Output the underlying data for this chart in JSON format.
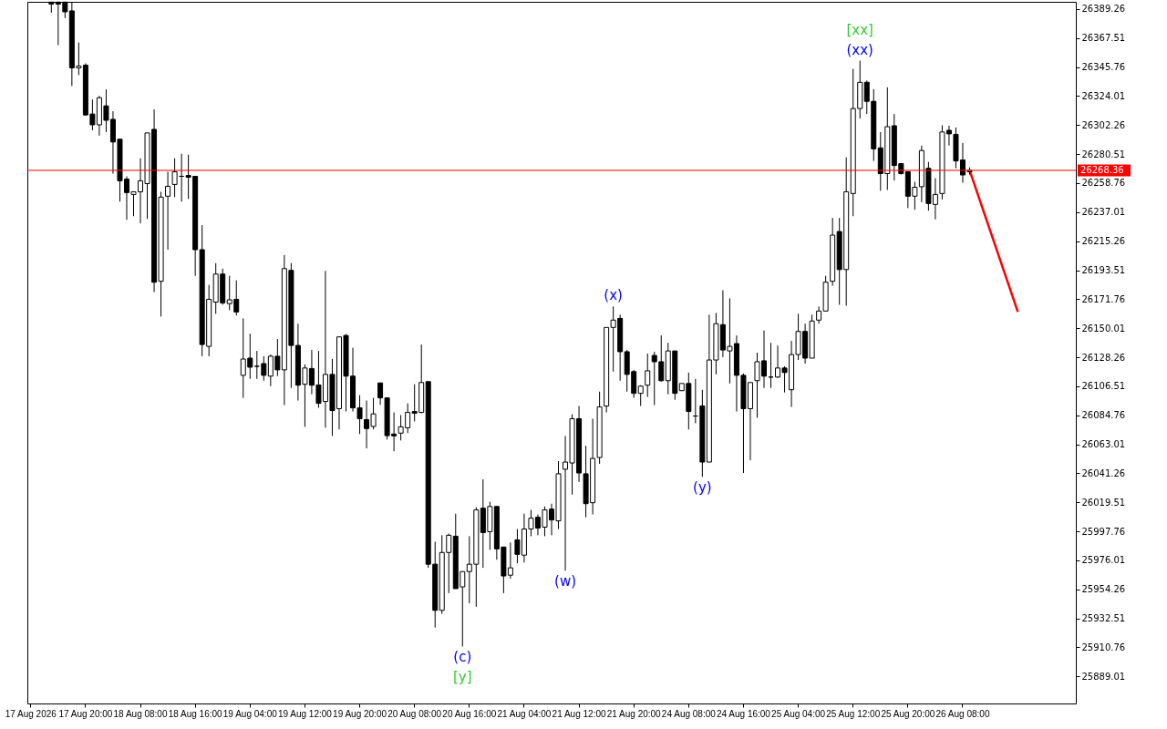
{
  "chart_data": {
    "type": "candlestick",
    "categories": [
      "17 Aug 2026",
      null,
      null,
      null,
      null,
      null,
      null,
      null,
      "17 Aug 20:00",
      null,
      null,
      null,
      null,
      null,
      null,
      null,
      "18 Aug 08:00",
      null,
      null,
      null,
      null,
      null,
      null,
      null,
      "18 Aug 16:00",
      null,
      null,
      null,
      null,
      null,
      null,
      null,
      "19 Aug 04:00",
      null,
      null,
      null,
      null,
      null,
      null,
      null,
      "19 Aug 12:00",
      null,
      null,
      null,
      null,
      null,
      null,
      null,
      "19 Aug 20:00",
      null,
      null,
      null,
      null,
      null,
      null,
      null,
      "20 Aug 08:00",
      null,
      null,
      null,
      null,
      null,
      null,
      null,
      "20 Aug 16:00",
      null,
      null,
      null,
      null,
      null,
      null,
      null,
      "21 Aug 04:00",
      null,
      null,
      null,
      null,
      null,
      null,
      null,
      "21 Aug 12:00",
      null,
      null,
      null,
      null,
      null,
      null,
      null,
      "21 Aug 20:00",
      null,
      null,
      null,
      null,
      null,
      null,
      null,
      "24 Aug 08:00",
      null,
      null,
      null,
      null,
      null,
      null,
      null,
      "24 Aug 16:00",
      null,
      null,
      null,
      null,
      null,
      null,
      null,
      "25 Aug 04:00",
      null,
      null,
      null,
      null,
      null,
      null,
      null,
      "25 Aug 12:00",
      null,
      null,
      null,
      null,
      null,
      null,
      null,
      "25 Aug 20:00",
      null,
      null,
      null,
      null,
      null,
      null,
      null,
      "26 Aug 08:00",
      null,
      null,
      null,
      null,
      null,
      null,
      null,
      null,
      null,
      null,
      null,
      null,
      null,
      null,
      null,
      null
    ],
    "ohlc": [
      null,
      null,
      null,
      [
        26394.5,
        26394.5,
        26386.5,
        26393
      ],
      [
        26394.5,
        26394.5,
        26362.2,
        26393
      ],
      [
        26394.5,
        26394.5,
        26382.5,
        26387.2
      ],
      [
        26387.9,
        26394.5,
        26331.6,
        26345.2
      ],
      [
        26345.2,
        26364.2,
        26339.8,
        26346.6
      ],
      [
        26347.2,
        26348.6,
        26309.3,
        26309.9
      ],
      [
        26310.6,
        26321.5,
        26298.4,
        26302.5
      ],
      [
        26302.5,
        26324.2,
        26294.4,
        26322.8
      ],
      [
        26316.7,
        26329.0,
        26297.1,
        26305.9
      ],
      [
        26306.6,
        26312.7,
        26265.9,
        26289.6
      ],
      [
        26291.7,
        26291.7,
        26244.9,
        26260.5
      ],
      [
        26261.8,
        26263.9,
        26231.3,
        26251.7
      ],
      [
        26250.3,
        26252.3,
        26234.0,
        26252.3
      ],
      [
        26252.3,
        26277.4,
        26228.6,
        26260.5
      ],
      [
        26258.4,
        26296.4,
        26232.0,
        26296.4
      ],
      [
        26299.1,
        26314.0,
        26177.1,
        26184.5
      ],
      [
        26185.2,
        26252.3,
        26158.8,
        26248.3
      ],
      [
        26249.0,
        26267.3,
        26208.9,
        26256.4
      ],
      [
        26257.8,
        26277.4,
        26248.3,
        26267.3
      ],
      [
        26263.9,
        26280.8,
        26244.9,
        26263.9
      ],
      [
        26264.5,
        26280.1,
        26246.9,
        26263.2
      ],
      [
        26263.9,
        26263.9,
        26189.3,
        26208.9
      ],
      [
        26208.9,
        26227.3,
        26129.0,
        26137.8
      ],
      [
        26136.4,
        26182.5,
        26129.0,
        26171.7
      ],
      [
        26169.6,
        26198.8,
        26160.8,
        26190.6
      ],
      [
        26190.6,
        26194.7,
        26167.6,
        26169.0
      ],
      [
        26168.5,
        26189.3,
        26163.5,
        26171.3
      ],
      [
        26171.7,
        26185.9,
        26159.5,
        26162.2
      ],
      [
        26114.7,
        26157.4,
        26097.8,
        26126.9
      ],
      [
        26127.6,
        26145.9,
        26112.0,
        26120.8
      ],
      [
        26121.5,
        26133.0,
        26112.0,
        26121.5
      ],
      [
        26123.5,
        26129.0,
        26110.7,
        26114.7
      ],
      [
        26114.1,
        26130.3,
        26106.6,
        26129.0
      ],
      [
        26129.0,
        26141.9,
        26114.1,
        26118.8
      ],
      [
        26118.8,
        26204.9,
        26092.4,
        26194.7
      ],
      [
        26193.4,
        26198.8,
        26105.3,
        26137.1
      ],
      [
        26137.1,
        26153.4,
        26095.8,
        26107.3
      ],
      [
        26108.0,
        26122.9,
        26076.1,
        26120.2
      ],
      [
        26119.8,
        26133.7,
        26100.5,
        26107.3
      ],
      [
        26107.5,
        26133.0,
        26090.3,
        26093.7
      ],
      [
        26095.1,
        26193.0,
        26075.4,
        26115.4
      ],
      [
        26115.4,
        26127.0,
        26069.3,
        26088.3
      ],
      [
        26089.7,
        26143.9,
        26074.1,
        26143.5
      ],
      [
        26144.6,
        26145.6,
        26087.6,
        26114.1
      ],
      [
        26114.1,
        26135.4,
        26087.6,
        26090.3
      ],
      [
        26090.3,
        26099.8,
        26070.7,
        26082.2
      ],
      [
        26081.5,
        26095.8,
        26059.9,
        26074.8
      ],
      [
        26076.4,
        26097.8,
        26074.1,
        26085.8
      ],
      [
        26109.0,
        26109.0,
        26092.6,
        26097.8
      ],
      [
        26097.8,
        26097.8,
        26066.6,
        26069.5
      ],
      [
        26070.7,
        26086.9,
        26057.8,
        26069.3
      ],
      [
        26071.4,
        26084.9,
        26065.9,
        26076.1
      ],
      [
        26075.4,
        26093.7,
        26071.4,
        26086.9
      ],
      [
        26087.6,
        26108.0,
        26080.2,
        26086.3
      ],
      [
        26086.9,
        26137.8,
        26086.3,
        26109.3
      ],
      [
        26110.0,
        26110.0,
        25970.4,
        25973.1
      ],
      [
        25973.1,
        25990.0,
        25925.6,
        25938.5
      ],
      [
        25938.5,
        25994.8,
        25935.8,
        25981.9
      ],
      [
        25981.9,
        25996.1,
        25951.4,
        25994.8
      ],
      [
        25994.1,
        26011.0,
        25954.8,
        25954.8
      ],
      [
        25956.1,
        25967.6,
        25911.4,
        25967.6
      ],
      [
        25967.6,
        25994.1,
        25943.9,
        25973.1
      ],
      [
        25973.1,
        26015.8,
        25941.2,
        26013.8
      ],
      [
        26015.1,
        26036.8,
        25970.4,
        25996.8
      ],
      [
        25997.5,
        26019.9,
        25983.9,
        26016.4
      ],
      [
        26016.4,
        26016.4,
        25976.5,
        25984.6
      ],
      [
        25986.0,
        25986.0,
        25951.4,
        25964.3
      ],
      [
        25964.9,
        25989.4,
        25962.3,
        25970.4
      ],
      [
        25991.4,
        25999.5,
        25973.8,
        25980.5
      ],
      [
        25979.9,
        26011.0,
        25974.4,
        25999.5
      ],
      [
        25999.5,
        26013.8,
        25994.1,
        26007.6
      ],
      [
        26008.3,
        26010.4,
        25994.8,
        26000.2
      ],
      [
        26000.9,
        26016.4,
        25994.1,
        26013.8
      ],
      [
        26014.4,
        26018.5,
        25994.8,
        26006.3
      ],
      [
        26005.6,
        26050.4,
        25999.5,
        26040.9
      ],
      [
        26044.3,
        26069.3,
        25968.3,
        26049.7
      ],
      [
        26049.0,
        26085.6,
        26025.3,
        26082.2
      ],
      [
        26082.2,
        26091.7,
        26034.8,
        26041.5
      ],
      [
        26040.9,
        26061.9,
        26008.3,
        26018.5
      ],
      [
        26019.2,
        26082.2,
        26010.4,
        26052.4
      ],
      [
        26053.1,
        26102.5,
        26048.3,
        26091.0
      ],
      [
        26091.7,
        26150.6,
        26086.9,
        26150.6
      ],
      [
        26150.6,
        26166.3,
        26117.5,
        26156.1
      ],
      [
        26157.4,
        26160.2,
        26110.7,
        26132.4
      ],
      [
        26132.4,
        26133.7,
        26102.5,
        26115.4
      ],
      [
        26117.5,
        26118.8,
        26097.8,
        26101.2
      ],
      [
        26101.2,
        26107.3,
        26091.7,
        26106.6
      ],
      [
        26107.3,
        26131.0,
        26098.5,
        26118.1
      ],
      [
        26129.6,
        26132.4,
        26092.4,
        26124.9
      ],
      [
        26124.9,
        26144.6,
        26110.0,
        26110.7
      ],
      [
        26110.7,
        26139.1,
        26100.5,
        26133.0
      ],
      [
        26133.0,
        26133.0,
        26096.4,
        26101.2
      ],
      [
        26103.2,
        26108.6,
        26103.2,
        26108.6
      ],
      [
        26108.6,
        26116.8,
        26074.1,
        26087.6
      ],
      [
        26084.2,
        26112.0,
        26078.8,
        26084.2
      ],
      [
        26091.7,
        26103.9,
        26038.6,
        26049.7
      ],
      [
        26049.7,
        26160.2,
        26049.7,
        26126.2
      ],
      [
        26126.2,
        26161.5,
        26115.4,
        26153.4
      ],
      [
        26152.7,
        26178.5,
        26128.3,
        26133.7
      ],
      [
        26133.0,
        26172.4,
        26108.6,
        26136.4
      ],
      [
        26138.5,
        26144.6,
        26087.6,
        26114.7
      ],
      [
        26114.7,
        26116.1,
        26041.5,
        26089.7
      ],
      [
        26089.7,
        26109.3,
        26051.0,
        26109.3
      ],
      [
        26110.7,
        26131.7,
        26082.9,
        26124.9
      ],
      [
        26125.6,
        26148.3,
        26105.3,
        26114.1
      ],
      [
        26113.4,
        26139.1,
        26105.3,
        26113.4
      ],
      [
        26113.4,
        26137.1,
        26112.7,
        26120.2
      ],
      [
        26120.2,
        26121.5,
        26101.9,
        26116.8
      ],
      [
        26103.9,
        26140.5,
        26091.0,
        26130.3
      ],
      [
        26130.3,
        26160.8,
        26126.2,
        26147.6
      ],
      [
        26147.6,
        26153.4,
        26123.5,
        26127.6
      ],
      [
        26127.6,
        26160.2,
        26127.6,
        26155.4
      ],
      [
        26156.1,
        26166.3,
        26153.4,
        26162.9
      ],
      [
        26162.9,
        26189.3,
        26162.9,
        26184.5
      ],
      [
        26185.2,
        26232.7,
        26181.8,
        26219.8
      ],
      [
        26222.5,
        26232.7,
        26167.6,
        26194.0
      ],
      [
        26194.0,
        26278.1,
        26166.9,
        26252.3
      ],
      [
        26251.0,
        26344.5,
        26234.0,
        26314.7
      ],
      [
        26314.7,
        26350.6,
        26307.2,
        26334.4
      ],
      [
        26334.4,
        26335.7,
        26310.6,
        26320.1
      ],
      [
        26320.1,
        26329.3,
        26275.4,
        26284.5
      ],
      [
        26285.2,
        26297.0,
        26253.0,
        26265.9
      ],
      [
        26265.9,
        26330.6,
        26253.7,
        26301.1
      ],
      [
        26301.8,
        26310.6,
        26260.8,
        26272.0
      ],
      [
        26273.4,
        26273.4,
        26265.2,
        26265.9
      ],
      [
        26267.3,
        26267.3,
        26240.1,
        26249.0
      ],
      [
        26249.0,
        26259.8,
        26238.8,
        26255.7
      ],
      [
        26256.1,
        26286.9,
        26244.5,
        26283.2
      ],
      [
        26269.9,
        26274.7,
        26238.1,
        26243.5
      ],
      [
        26242.8,
        26262.5,
        26231.6,
        26250.3
      ],
      [
        26251.0,
        26302.2,
        26246.6,
        26297.1
      ],
      [
        26298.4,
        26301.8,
        26287.0,
        26295.7
      ],
      [
        26295.4,
        26300.5,
        26269.9,
        26275.4
      ],
      [
        26276.1,
        26288.9,
        26259.1,
        26264.9
      ],
      [
        26267.3,
        26270.6,
        26265.2,
        26268.36
      ],
      null,
      null,
      null,
      null,
      null,
      null,
      null,
      null,
      null,
      null,
      null,
      null,
      null,
      null,
      null
    ],
    "series": [
      {
        "type": "line",
        "color": "#ff0000",
        "values": [
          null,
          null,
          null,
          null,
          null,
          null,
          null,
          null,
          null,
          null,
          null,
          null,
          null,
          null,
          null,
          null,
          null,
          null,
          null,
          null,
          null,
          null,
          null,
          null,
          null,
          null,
          null,
          null,
          null,
          null,
          null,
          null,
          null,
          null,
          null,
          null,
          null,
          null,
          null,
          null,
          null,
          null,
          null,
          null,
          null,
          null,
          null,
          null,
          null,
          null,
          null,
          null,
          null,
          null,
          null,
          null,
          null,
          null,
          null,
          null,
          null,
          null,
          null,
          null,
          null,
          null,
          null,
          null,
          null,
          null,
          null,
          null,
          null,
          null,
          null,
          null,
          null,
          null,
          null,
          null,
          null,
          null,
          null,
          null,
          null,
          null,
          null,
          null,
          null,
          null,
          null,
          null,
          null,
          null,
          null,
          null,
          null,
          null,
          null,
          null,
          null,
          null,
          null,
          null,
          null,
          null,
          null,
          null,
          null,
          null,
          null,
          null,
          null,
          null,
          null,
          null,
          null,
          null,
          null,
          null,
          null,
          null,
          null,
          null,
          null,
          null,
          null,
          null,
          null,
          null,
          null,
          null,
          null,
          null,
          null,
          null,
          null,
          26268.36,
          null,
          null,
          null,
          null,
          null,
          null,
          26162.9,
          null,
          null,
          null,
          null,
          null,
          null,
          null,
          null
        ]
      }
    ],
    "ylim": [
      25868.7,
      26394.7
    ],
    "yticks": [
      26389.26,
      26367.51,
      26345.76,
      26324.01,
      26302.26,
      26280.51,
      26258.76,
      26237.01,
      26215.26,
      26193.51,
      26171.76,
      26150.01,
      26128.26,
      26106.51,
      26084.76,
      26063.01,
      26041.26,
      26019.51,
      25997.76,
      25976.01,
      25954.26,
      25932.51,
      25910.76,
      25889.01
    ],
    "ref_lines": [
      {
        "axis": "y",
        "value": 26268.36,
        "label": "26268.36",
        "color": "#ff0000"
      }
    ],
    "annotations": [
      {
        "text": "(c)",
        "y": 25911.4
      },
      {
        "text": "[y]",
        "y": 25911.4
      },
      {
        "text": "(w)",
        "y": 25968.3
      },
      {
        "text": "(x)",
        "y": 26166.3
      },
      {
        "text": "(y)",
        "y": 26038.6
      },
      {
        "text": "(xx)",
        "y": 26350.6
      },
      {
        "text": "[xx]",
        "y": 26350.6
      }
    ],
    "grid": false
  }
}
